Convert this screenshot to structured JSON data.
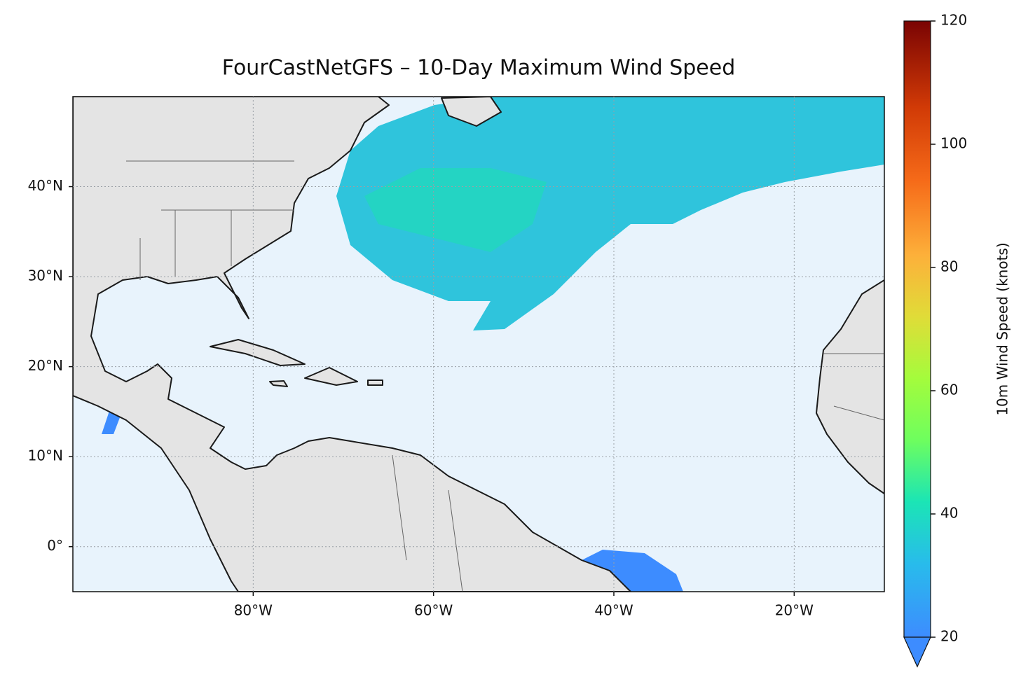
{
  "chart_data": {
    "type": "map",
    "title": "FourCastNetGFS – 10-Day Maximum Wind Speed",
    "xlim": [
      -100,
      -10
    ],
    "ylim": [
      -5,
      50
    ],
    "xticks": [
      {
        "value": -80,
        "label": "80°W"
      },
      {
        "value": -60,
        "label": "60°W"
      },
      {
        "value": -40,
        "label": "40°W"
      },
      {
        "value": -20,
        "label": "20°W"
      }
    ],
    "yticks": [
      {
        "value": 0,
        "label": "0°"
      },
      {
        "value": 10,
        "label": "10°N"
      },
      {
        "value": 20,
        "label": "20°N"
      },
      {
        "value": 30,
        "label": "30°N"
      },
      {
        "value": 40,
        "label": "40°N"
      }
    ],
    "grid": true,
    "colorbar": {
      "label": "10m Wind Speed (knots)",
      "clim": [
        20,
        120
      ],
      "ticks": [
        20,
        40,
        60,
        80,
        100,
        120
      ]
    }
  }
}
